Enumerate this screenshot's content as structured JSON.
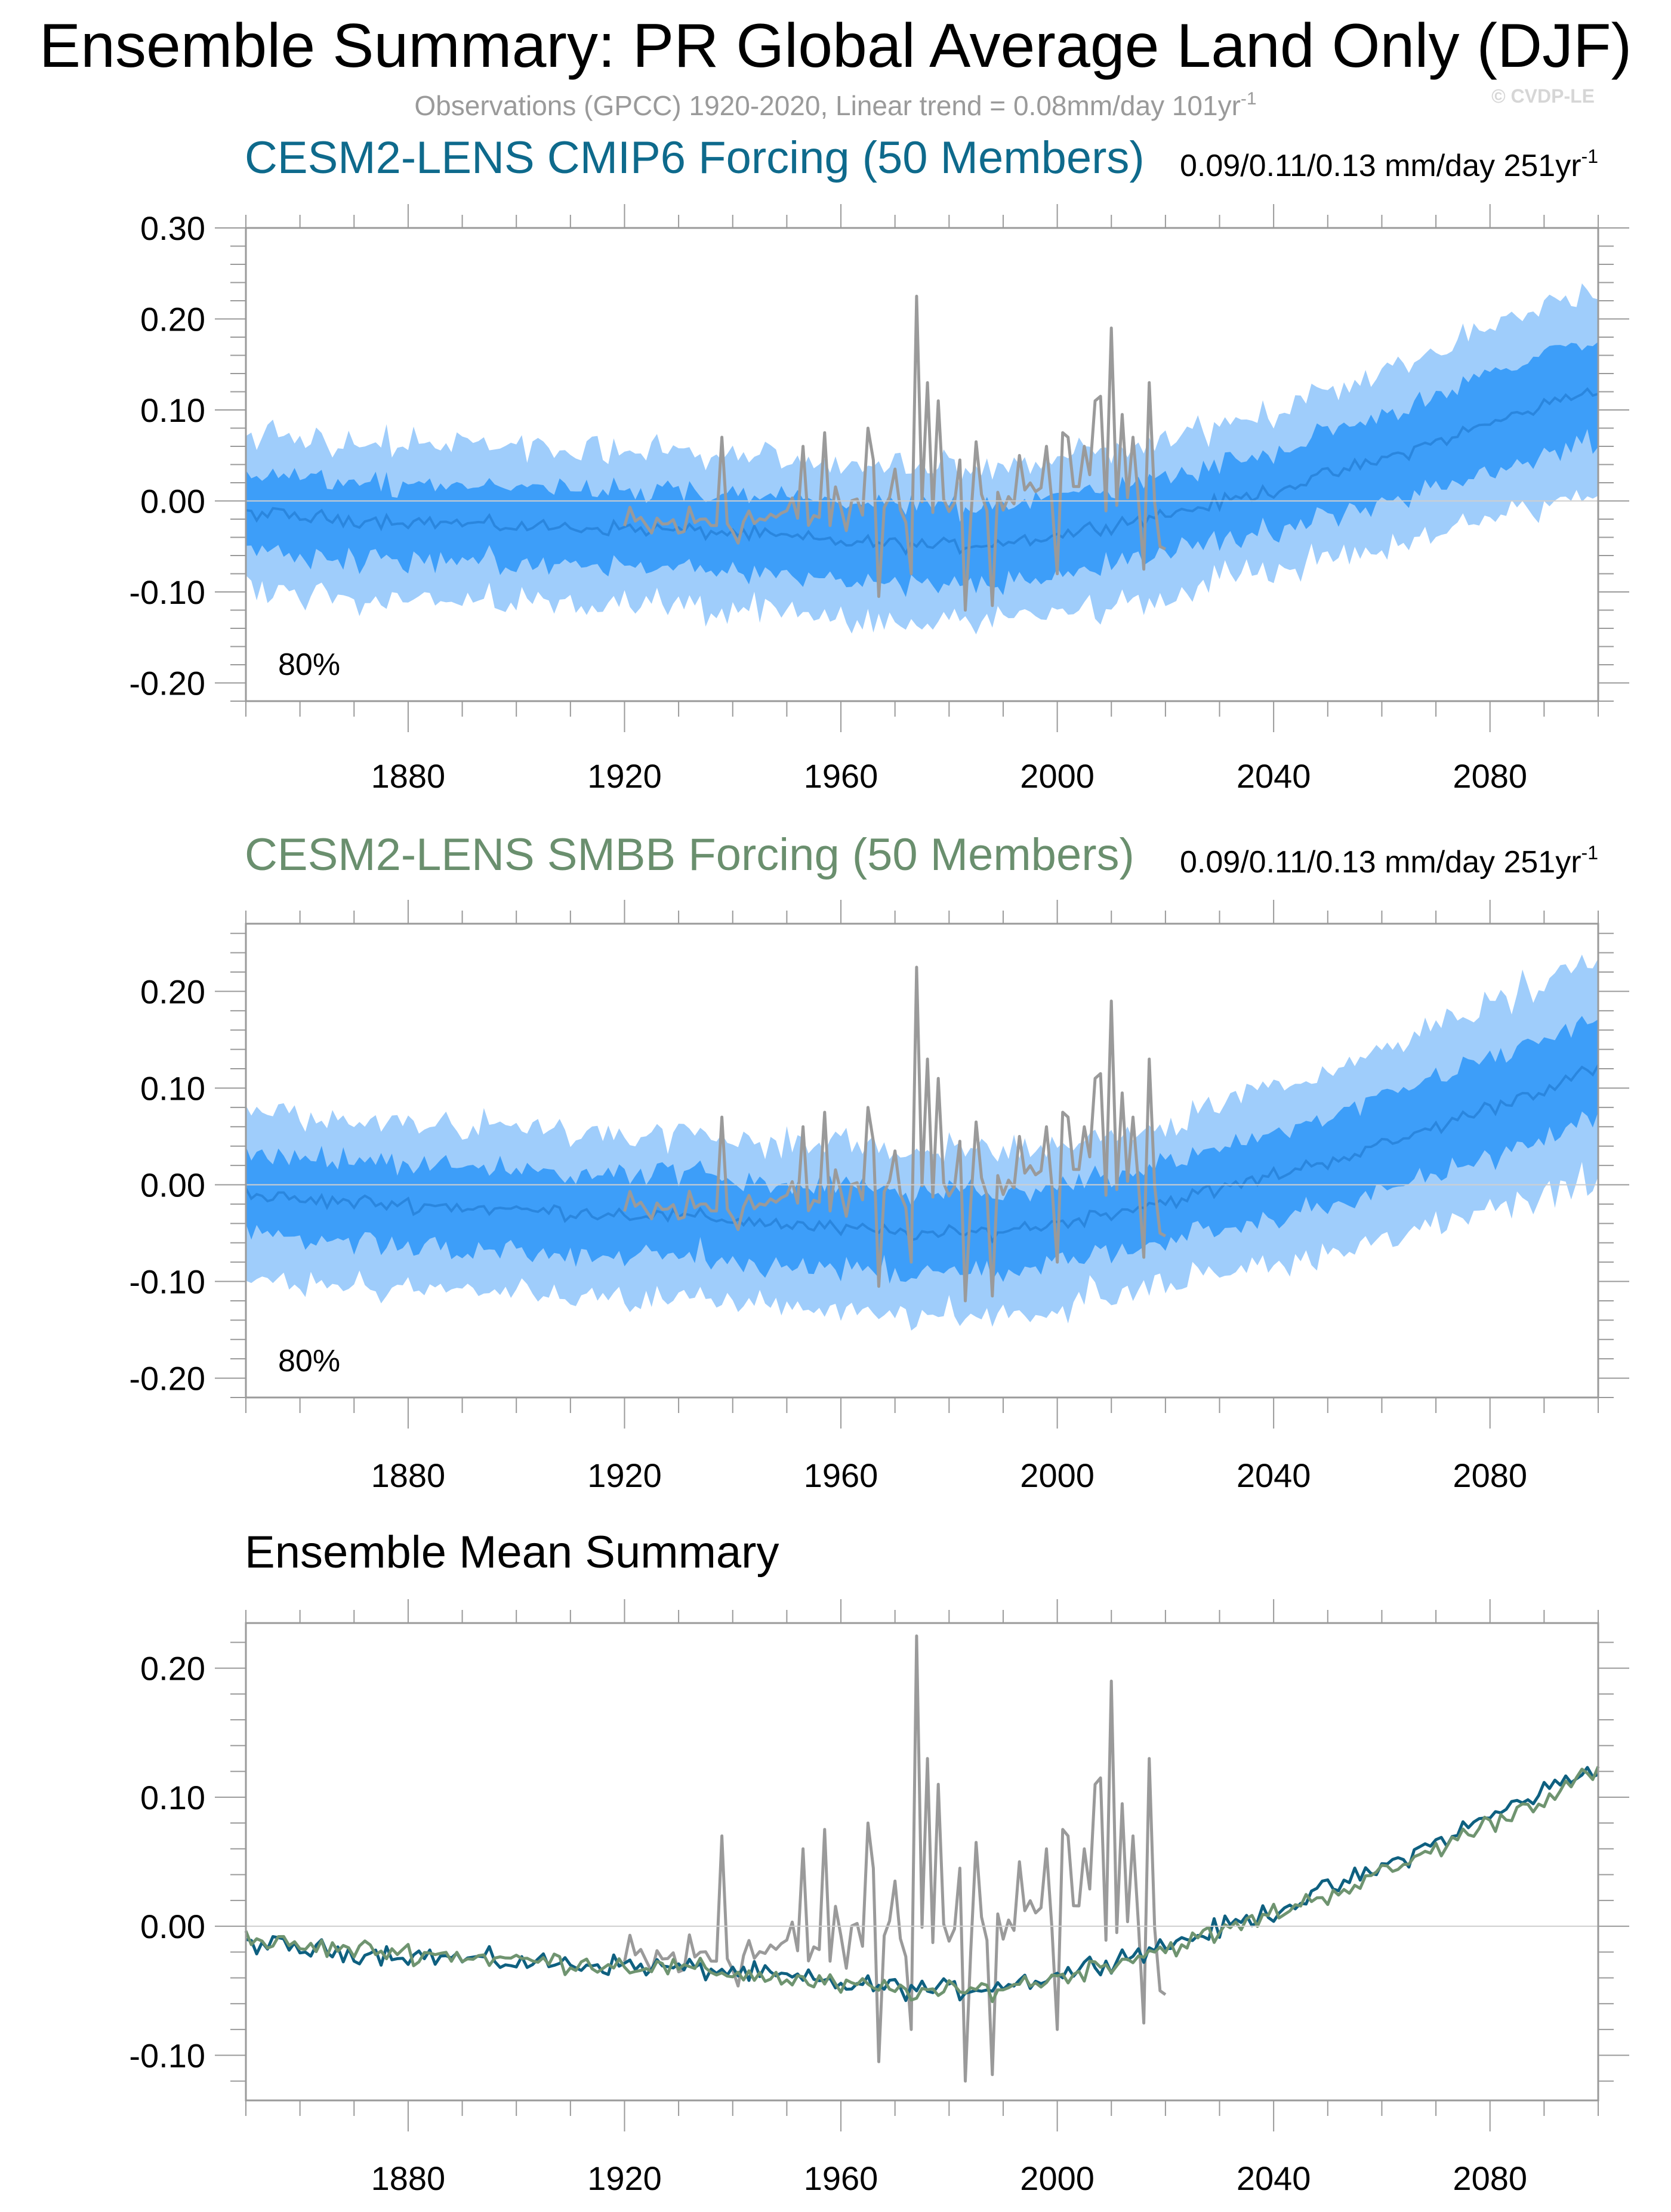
{
  "header": {
    "title": "Ensemble Summary: PR Global Average Land Only (DJF)",
    "subtitle_base": "Observations (GPCC) 1920-2020, Linear trend = 0.08mm/day 101yr",
    "subtitle_sup": "-1",
    "copyright": "© CVDP-LE"
  },
  "colors": {
    "obs": "#9a9a9a",
    "band_outer": "#9fcdfb",
    "band_inner": "#3d9ef9",
    "ens_mean_line": "#2a86de",
    "cmip6_title": "#0e6a8c",
    "smbb_title": "#6a8f6e",
    "mean_cmip6": "#0e6080",
    "mean_smbb": "#6f9470",
    "zero_line": "#cfcfcf",
    "frame": "#9a9a9a"
  },
  "chart_data": [
    {
      "type": "area",
      "id": "cmip6",
      "title": "CESM2-LENS CMIP6 Forcing (50 Members)",
      "trend_text": "0.09/0.11/0.13 mm/day 251yr",
      "trend_sup": "-1",
      "band_label": "80%",
      "xlabel": "",
      "ylabel": "",
      "xlim": [
        1850,
        2100
      ],
      "ylim": [
        -0.22,
        0.3
      ],
      "yticks": [
        -0.2,
        -0.1,
        0.0,
        0.1,
        0.2,
        0.3
      ],
      "ytick_labels": [
        "-0.20",
        "-0.10",
        "0.00",
        "0.10",
        "0.20",
        "0.30"
      ],
      "xticks": [
        1880,
        1920,
        1960,
        2000,
        2040,
        2080
      ],
      "xtick_labels": [
        "1880",
        "1920",
        "1960",
        "2000",
        "2040",
        "2080"
      ],
      "series": [
        {
          "name": "Ensemble mean",
          "kind": "mean",
          "key_points": [
            [
              1850,
              -0.012
            ],
            [
              1860,
              -0.018
            ],
            [
              1880,
              -0.022
            ],
            [
              1900,
              -0.028
            ],
            [
              1920,
              -0.03
            ],
            [
              1940,
              -0.035
            ],
            [
              1960,
              -0.045
            ],
            [
              1980,
              -0.05
            ],
            [
              1990,
              -0.045
            ],
            [
              2000,
              -0.038
            ],
            [
              2010,
              -0.025
            ],
            [
              2020,
              -0.015
            ],
            [
              2030,
              -0.002
            ],
            [
              2040,
              0.012
            ],
            [
              2060,
              0.045
            ],
            [
              2080,
              0.085
            ],
            [
              2100,
              0.125
            ]
          ]
        },
        {
          "name": "Inner band (interquartile)",
          "kind": "inner",
          "half_width": 0.042
        },
        {
          "name": "80% band",
          "kind": "outer",
          "half_width": 0.085
        },
        {
          "name": "Observations (GPCC)",
          "kind": "obs",
          "x_range": [
            1920,
            2020
          ]
        }
      ]
    },
    {
      "type": "area",
      "id": "smbb",
      "title": "CESM2-LENS SMBB Forcing (50 Members)",
      "trend_text": "0.09/0.11/0.13 mm/day 251yr",
      "trend_sup": "-1",
      "band_label": "80%",
      "xlabel": "",
      "ylabel": "",
      "xlim": [
        1850,
        2100
      ],
      "ylim": [
        -0.22,
        0.27
      ],
      "yticks": [
        -0.2,
        -0.1,
        0.0,
        0.1,
        0.2
      ],
      "ytick_labels": [
        "-0.20",
        "-0.10",
        "0.00",
        "0.10",
        "0.20"
      ],
      "xticks": [
        1880,
        1920,
        1960,
        2000,
        2040,
        2080
      ],
      "xtick_labels": [
        "1880",
        "1920",
        "1960",
        "2000",
        "2040",
        "2080"
      ],
      "series": [
        {
          "name": "Ensemble mean",
          "kind": "mean",
          "key_points": [
            [
              1850,
              -0.01
            ],
            [
              1860,
              -0.016
            ],
            [
              1880,
              -0.02
            ],
            [
              1900,
              -0.026
            ],
            [
              1920,
              -0.03
            ],
            [
              1940,
              -0.036
            ],
            [
              1960,
              -0.046
            ],
            [
              1980,
              -0.052
            ],
            [
              1990,
              -0.047
            ],
            [
              2000,
              -0.04
            ],
            [
              2010,
              -0.028
            ],
            [
              2020,
              -0.017
            ],
            [
              2030,
              -0.005
            ],
            [
              2040,
              0.01
            ],
            [
              2060,
              0.04
            ],
            [
              2080,
              0.08
            ],
            [
              2100,
              0.12
            ]
          ]
        },
        {
          "name": "Inner band (interquartile)",
          "kind": "inner",
          "half_width": 0.042
        },
        {
          "name": "80% band",
          "kind": "outer",
          "half_width": 0.085
        },
        {
          "name": "Observations (GPCC)",
          "kind": "obs",
          "x_range": [
            1920,
            2020
          ]
        }
      ]
    },
    {
      "type": "line",
      "id": "mean",
      "title": "Ensemble Mean Summary",
      "xlabel": "",
      "ylabel": "",
      "xlim": [
        1850,
        2100
      ],
      "ylim": [
        -0.135,
        0.235
      ],
      "yticks": [
        -0.1,
        0.0,
        0.1,
        0.2
      ],
      "ytick_labels": [
        "-0.10",
        "0.00",
        "0.10",
        "0.20"
      ],
      "xticks": [
        1880,
        1920,
        1960,
        2000,
        2040,
        2080
      ],
      "xtick_labels": [
        "1880",
        "1920",
        "1960",
        "2000",
        "2040",
        "2080"
      ],
      "series": [
        {
          "name": "CESM2-LENS CMIP6 ensemble mean",
          "kind": "mean_cmip6"
        },
        {
          "name": "CESM2-LENS SMBB ensemble mean",
          "kind": "mean_smbb"
        },
        {
          "name": "Observations (GPCC)",
          "kind": "obs",
          "x_range": [
            1920,
            2020
          ]
        }
      ]
    }
  ]
}
